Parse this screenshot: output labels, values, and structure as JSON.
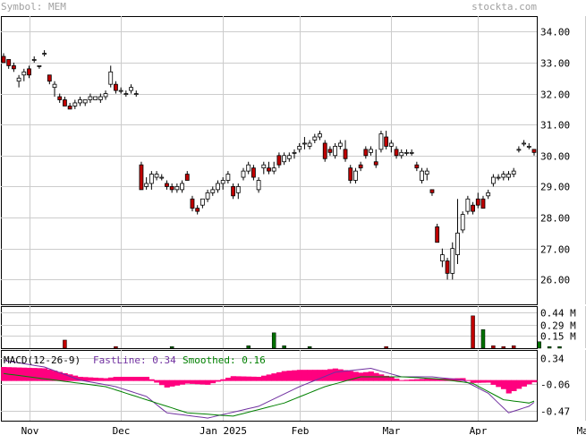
{
  "header": {
    "symbol_label": "Symbol: MEM",
    "source_label": "stockta.com"
  },
  "chart_data": {
    "type": "candlestick",
    "price_panel": {
      "ylim": [
        25.2,
        34.5
      ],
      "ticks": [
        "34.00",
        "33.00",
        "32.00",
        "31.00",
        "30.00",
        "29.00",
        "28.00",
        "27.00",
        "26.00"
      ],
      "tick_values": [
        34,
        33,
        32,
        31,
        30,
        29,
        28,
        27,
        26
      ]
    },
    "volume_panel": {
      "ylim": [
        0,
        0.52
      ],
      "ticks": [
        "0.44 M",
        "0.29 M",
        "0.15 M"
      ],
      "tick_values": [
        0.44,
        0.29,
        0.15
      ],
      "bars": [
        {
          "i": 12,
          "v": 0.1,
          "c": "#c00000"
        },
        {
          "i": 22,
          "v": 0.02,
          "c": "#c00000"
        },
        {
          "i": 33,
          "v": 0.02,
          "c": "#007000"
        },
        {
          "i": 48,
          "v": 0.03,
          "c": "#007000"
        },
        {
          "i": 53,
          "v": 0.19,
          "c": "#007000"
        },
        {
          "i": 55,
          "v": 0.03,
          "c": "#007000"
        },
        {
          "i": 60,
          "v": 0.02,
          "c": "#007000"
        },
        {
          "i": 75,
          "v": 0.02,
          "c": "#c00000"
        },
        {
          "i": 92,
          "v": 0.4,
          "c": "#c00000"
        },
        {
          "i": 94,
          "v": 0.23,
          "c": "#007000"
        },
        {
          "i": 96,
          "v": 0.03,
          "c": "#c00000"
        },
        {
          "i": 98,
          "v": 0.02,
          "c": "#c00000"
        },
        {
          "i": 100,
          "v": 0.03,
          "c": "#c00000"
        },
        {
          "i": 105,
          "v": 0.08,
          "c": "#007000"
        },
        {
          "i": 107,
          "v": 0.02,
          "c": "#007000"
        },
        {
          "i": 109,
          "v": 0.02,
          "c": "#007000"
        }
      ]
    },
    "macd_panel": {
      "label": "MACD(12-26-9)",
      "fast_label": "FastLine: 0.34",
      "smooth_label": "Smoothed: 0.16",
      "ylim": [
        -0.62,
        0.46
      ],
      "ticks": [
        "0.34",
        "-0.06",
        "-0.47"
      ],
      "tick_values": [
        0.34,
        -0.06,
        -0.47
      ],
      "fast_points": [
        [
          0,
          0.3
        ],
        [
          8,
          0.2
        ],
        [
          15,
          0.0
        ],
        [
          22,
          -0.1
        ],
        [
          28,
          -0.25
        ],
        [
          32,
          -0.5
        ],
        [
          40,
          -0.58
        ],
        [
          50,
          -0.4
        ],
        [
          58,
          -0.1
        ],
        [
          65,
          0.12
        ],
        [
          72,
          0.18
        ],
        [
          78,
          0.05
        ],
        [
          84,
          0.05
        ],
        [
          90,
          0.0
        ],
        [
          95,
          -0.2
        ],
        [
          99,
          -0.5
        ],
        [
          103,
          -0.4
        ],
        [
          108,
          -0.1
        ],
        [
          113,
          0.1
        ],
        [
          118,
          0.34
        ]
      ],
      "smooth_points": [
        [
          0,
          0.1
        ],
        [
          10,
          0.0
        ],
        [
          20,
          -0.1
        ],
        [
          28,
          -0.3
        ],
        [
          36,
          -0.5
        ],
        [
          45,
          -0.55
        ],
        [
          55,
          -0.35
        ],
        [
          63,
          -0.1
        ],
        [
          70,
          0.05
        ],
        [
          78,
          0.05
        ],
        [
          85,
          0.02
        ],
        [
          92,
          -0.05
        ],
        [
          98,
          -0.3
        ],
        [
          103,
          -0.35
        ],
        [
          108,
          -0.2
        ],
        [
          113,
          -0.05
        ],
        [
          118,
          0.16
        ]
      ]
    },
    "x_labels": [
      {
        "i": 5,
        "label": "Nov"
      },
      {
        "i": 23,
        "label": "Dec"
      },
      {
        "i": 43,
        "label": "Jan 2025"
      },
      {
        "i": 58,
        "label": "Feb"
      },
      {
        "i": 76,
        "label": "Mar"
      },
      {
        "i": 93,
        "label": "Apr"
      },
      {
        "i": 114,
        "label": "May"
      }
    ],
    "ohlc": [
      [
        33.2,
        33.3,
        33.0,
        33.0
      ],
      [
        33.1,
        33.1,
        32.8,
        32.9
      ],
      [
        32.9,
        33.0,
        32.7,
        32.8
      ],
      [
        32.4,
        32.6,
        32.2,
        32.5
      ],
      [
        32.6,
        32.8,
        32.4,
        32.7
      ],
      [
        32.8,
        32.9,
        32.5,
        32.6
      ],
      [
        33.1,
        33.2,
        33.0,
        33.1
      ],
      [
        32.9,
        32.9,
        32.8,
        32.9
      ],
      [
        33.3,
        33.4,
        33.2,
        33.3
      ],
      [
        32.6,
        32.6,
        32.3,
        32.4
      ],
      [
        32.2,
        32.4,
        31.9,
        32.3
      ],
      [
        31.9,
        32.0,
        31.7,
        31.8
      ],
      [
        31.8,
        31.9,
        31.6,
        31.6
      ],
      [
        31.6,
        31.7,
        31.5,
        31.5
      ],
      [
        31.6,
        31.8,
        31.5,
        31.7
      ],
      [
        31.7,
        31.9,
        31.6,
        31.8
      ],
      [
        31.7,
        31.8,
        31.6,
        31.8
      ],
      [
        31.8,
        32.0,
        31.7,
        31.9
      ],
      [
        31.8,
        31.9,
        31.8,
        31.9
      ],
      [
        31.8,
        32.0,
        31.7,
        31.9
      ],
      [
        31.9,
        32.1,
        31.8,
        32.0
      ],
      [
        32.3,
        32.9,
        32.2,
        32.7
      ],
      [
        32.3,
        32.4,
        32.0,
        32.1
      ],
      [
        32.1,
        32.2,
        32.0,
        32.1
      ],
      [
        32.0,
        32.1,
        31.9,
        32.0
      ],
      [
        32.1,
        32.3,
        32.0,
        32.2
      ],
      [
        32.0,
        32.1,
        31.9,
        32.0
      ],
      [
        29.7,
        29.8,
        28.9,
        28.9
      ],
      [
        29.0,
        29.3,
        28.9,
        29.1
      ],
      [
        29.1,
        29.5,
        28.9,
        29.4
      ],
      [
        29.3,
        29.5,
        29.2,
        29.4
      ],
      [
        29.3,
        29.4,
        29.2,
        29.3
      ],
      [
        29.1,
        29.2,
        28.9,
        29.0
      ],
      [
        29.0,
        29.1,
        28.8,
        28.9
      ],
      [
        28.9,
        29.1,
        28.8,
        29.0
      ],
      [
        28.9,
        29.2,
        28.8,
        29.1
      ],
      [
        29.4,
        29.5,
        29.2,
        29.2
      ],
      [
        28.6,
        28.7,
        28.2,
        28.3
      ],
      [
        28.3,
        28.4,
        28.1,
        28.2
      ],
      [
        28.4,
        28.6,
        28.3,
        28.6
      ],
      [
        28.6,
        28.9,
        28.5,
        28.8
      ],
      [
        28.8,
        29.0,
        28.7,
        28.9
      ],
      [
        28.9,
        29.2,
        28.8,
        29.1
      ],
      [
        29.1,
        29.3,
        28.9,
        29.2
      ],
      [
        29.2,
        29.5,
        29.1,
        29.4
      ],
      [
        29.0,
        29.1,
        28.6,
        28.7
      ],
      [
        28.8,
        29.1,
        28.6,
        29.0
      ],
      [
        29.3,
        29.6,
        29.2,
        29.5
      ],
      [
        29.5,
        29.8,
        29.4,
        29.7
      ],
      [
        29.6,
        29.7,
        29.2,
        29.3
      ],
      [
        28.9,
        29.3,
        28.8,
        29.2
      ],
      [
        29.6,
        29.8,
        29.4,
        29.7
      ],
      [
        29.6,
        29.8,
        29.4,
        29.5
      ],
      [
        29.5,
        29.8,
        29.4,
        29.6
      ],
      [
        30.0,
        30.1,
        29.6,
        29.7
      ],
      [
        29.8,
        30.1,
        29.7,
        30.0
      ],
      [
        29.9,
        30.1,
        29.8,
        30.0
      ],
      [
        30.1,
        30.2,
        29.9,
        30.1
      ],
      [
        30.2,
        30.4,
        30.1,
        30.3
      ],
      [
        30.4,
        30.6,
        30.2,
        30.4
      ],
      [
        30.3,
        30.5,
        30.2,
        30.4
      ],
      [
        30.5,
        30.7,
        30.4,
        30.6
      ],
      [
        30.6,
        30.8,
        30.5,
        30.7
      ],
      [
        30.4,
        30.5,
        29.8,
        29.9
      ],
      [
        30.2,
        30.3,
        30.0,
        30.1
      ],
      [
        30.0,
        30.4,
        29.9,
        30.3
      ],
      [
        30.3,
        30.5,
        30.2,
        30.4
      ],
      [
        30.2,
        30.5,
        29.8,
        29.9
      ],
      [
        29.6,
        29.7,
        29.1,
        29.2
      ],
      [
        29.2,
        29.6,
        29.1,
        29.5
      ],
      [
        29.7,
        29.8,
        29.5,
        29.6
      ],
      [
        30.2,
        30.3,
        29.9,
        30.0
      ],
      [
        30.1,
        30.3,
        30.0,
        30.2
      ],
      [
        29.8,
        30.2,
        29.6,
        29.7
      ],
      [
        30.2,
        30.8,
        30.1,
        30.7
      ],
      [
        30.6,
        30.8,
        30.2,
        30.3
      ],
      [
        30.3,
        30.5,
        30.1,
        30.4
      ],
      [
        30.2,
        30.3,
        29.9,
        30.0
      ],
      [
        30.0,
        30.2,
        29.9,
        30.1
      ],
      [
        30.1,
        30.2,
        30.0,
        30.1
      ],
      [
        30.1,
        30.2,
        30.0,
        30.1
      ],
      [
        29.7,
        29.8,
        29.5,
        29.6
      ],
      [
        29.2,
        29.6,
        29.1,
        29.5
      ],
      [
        29.4,
        29.6,
        29.2,
        29.5
      ],
      [
        28.9,
        28.9,
        28.7,
        28.8
      ],
      [
        27.7,
        27.8,
        27.2,
        27.2
      ],
      [
        26.6,
        27.0,
        26.4,
        26.8
      ],
      [
        26.6,
        26.7,
        26.0,
        26.2
      ],
      [
        26.2,
        27.2,
        26.0,
        27.0
      ],
      [
        26.8,
        28.6,
        26.5,
        27.5
      ],
      [
        27.6,
        28.2,
        27.5,
        28.1
      ],
      [
        28.2,
        28.7,
        28.1,
        28.6
      ],
      [
        28.4,
        28.5,
        28.1,
        28.2
      ],
      [
        28.6,
        28.8,
        28.3,
        28.4
      ],
      [
        28.6,
        28.7,
        28.3,
        28.3
      ],
      [
        28.7,
        28.9,
        28.6,
        28.8
      ],
      [
        29.1,
        29.4,
        29.0,
        29.3
      ],
      [
        29.3,
        29.4,
        29.2,
        29.3
      ],
      [
        29.3,
        29.5,
        29.2,
        29.4
      ],
      [
        29.3,
        29.5,
        29.2,
        29.4
      ],
      [
        29.4,
        29.6,
        29.3,
        29.5
      ],
      [
        30.2,
        30.3,
        30.1,
        30.2
      ],
      [
        30.4,
        30.5,
        30.3,
        30.4
      ],
      [
        30.3,
        30.4,
        30.2,
        30.3
      ],
      [
        30.2,
        30.2,
        30.0,
        30.1
      ]
    ]
  }
}
